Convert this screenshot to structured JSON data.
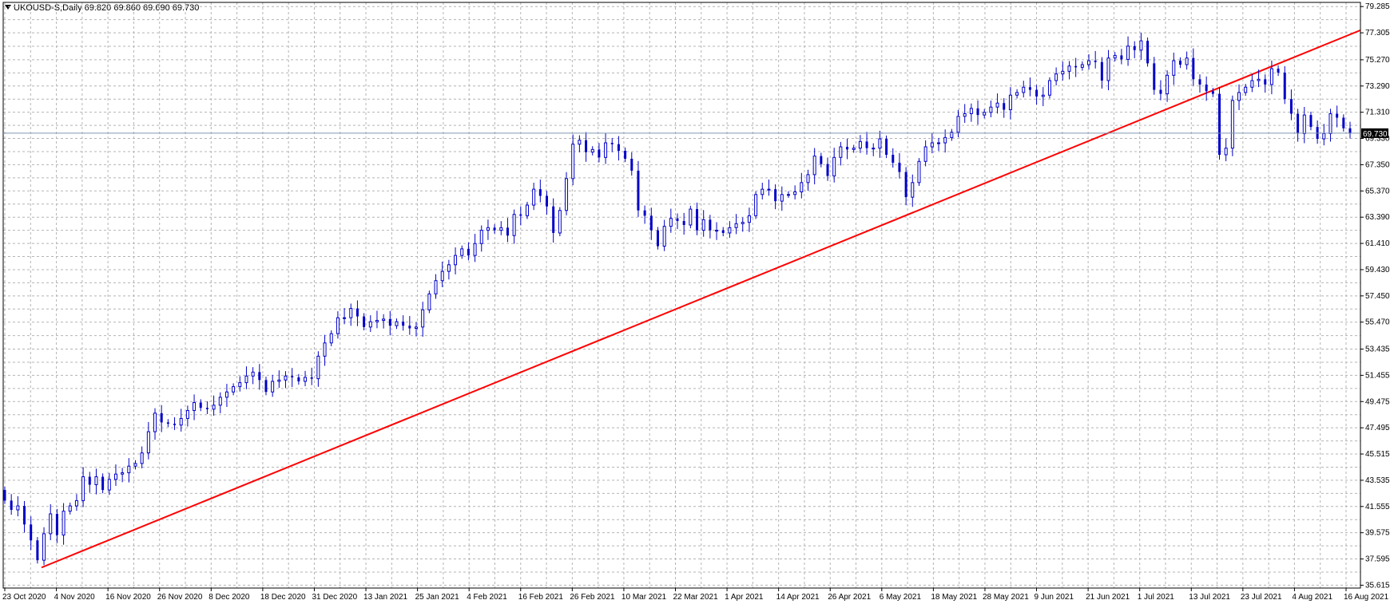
{
  "header": {
    "symbol": "UKOUSD-S,Daily",
    "ohlc": "69.820 69.860 69.690 69.730"
  },
  "colors": {
    "candle": "#0000c8",
    "trendline": "#ff0000",
    "grid": "#b4b4b4",
    "price_line": "#8096b4",
    "price_label_bg": "#000000",
    "price_label_text": "#ffffff"
  },
  "chart_data": {
    "type": "candlestick",
    "title": "UKOUSD-S,Daily",
    "xlabel": "",
    "ylabel": "",
    "ylim": [
      35.4,
      79.6
    ],
    "grid": true,
    "current_price": 69.73,
    "current_price_label": "69.730",
    "y_ticks": [
      "79.285",
      "77.305",
      "75.270",
      "73.290",
      "71.310",
      "69.330",
      "67.350",
      "65.370",
      "63.390",
      "61.410",
      "59.430",
      "57.450",
      "55.470",
      "53.435",
      "51.455",
      "49.475",
      "47.495",
      "45.515",
      "43.535",
      "41.555",
      "39.575",
      "37.595",
      "35.615"
    ],
    "x_ticks": [
      "23 Oct 2020",
      "4 Nov 2020",
      "16 Nov 2020",
      "26 Nov 2020",
      "8 Dec 2020",
      "18 Dec 2020",
      "31 Dec 2020",
      "13 Jan 2021",
      "25 Jan 2021",
      "4 Feb 2021",
      "16 Feb 2021",
      "26 Feb 2021",
      "10 Mar 2021",
      "22 Mar 2021",
      "1 Apr 2021",
      "14 Apr 2021",
      "26 Apr 2021",
      "6 May 2021",
      "18 May 2021",
      "28 May 2021",
      "9 Jun 2021",
      "21 Jun 2021",
      "1 Jul 2021",
      "13 Jul 2021",
      "23 Jul 2021",
      "4 Aug 2021",
      "16 Aug 2021"
    ],
    "candles_note": "Daily OHLC values estimated by eye from the candlesticks",
    "closes": [
      42.0,
      41.3,
      41.6,
      40.2,
      39.0,
      37.5,
      39.5,
      41.0,
      39.4,
      41.2,
      41.6,
      42.0,
      43.8,
      43.2,
      43.8,
      42.8,
      43.6,
      44.0,
      44.1,
      44.6,
      44.8,
      45.6,
      47.2,
      48.6,
      47.9,
      47.8,
      47.7,
      48.2,
      48.8,
      49.4,
      49.0,
      48.9,
      49.2,
      49.8,
      50.2,
      50.6,
      50.9,
      51.4,
      51.7,
      51.1,
      50.2,
      51.0,
      51.1,
      51.4,
      51.3,
      51.0,
      51.3,
      51.2,
      52.9,
      53.9,
      54.6,
      55.8,
      55.8,
      56.5,
      55.9,
      55.1,
      55.5,
      55.6,
      55.7,
      55.2,
      55.5,
      55.2,
      55.0,
      55.1,
      56.4,
      57.6,
      58.6,
      59.3,
      59.8,
      60.5,
      61.0,
      60.5,
      61.4,
      62.4,
      62.6,
      62.4,
      62.6,
      62.0,
      63.6,
      63.5,
      64.3,
      65.5,
      65.0,
      64.2,
      62.2,
      63.9,
      66.3,
      68.9,
      69.2,
      68.3,
      68.5,
      67.9,
      69.0,
      68.9,
      68.4,
      67.8,
      66.9,
      63.9,
      63.5,
      62.4,
      61.2,
      62.7,
      63.3,
      63.1,
      62.8,
      64.0,
      62.4,
      63.2,
      62.4,
      62.4,
      62.2,
      62.6,
      62.9,
      63.0,
      63.5,
      65.1,
      65.5,
      65.5,
      64.6,
      65.1,
      65.1,
      65.3,
      66.0,
      66.6,
      68.0,
      67.4,
      66.5,
      67.9,
      68.7,
      68.5,
      68.6,
      69.1,
      68.6,
      68.6,
      69.3,
      68.1,
      67.5,
      66.8,
      64.9,
      66.0,
      67.6,
      68.7,
      69.0,
      69.0,
      69.4,
      69.8,
      71.0,
      71.2,
      71.6,
      71.1,
      71.3,
      71.7,
      72.0,
      71.5,
      72.6,
      72.8,
      73.2,
      73.0,
      72.5,
      72.6,
      73.7,
      74.2,
      74.4,
      74.8,
      74.7,
      74.9,
      75.2,
      75.1,
      73.7,
      75.4,
      75.6,
      75.3,
      76.3,
      76.0,
      76.7,
      75.0,
      73.0,
      72.7,
      74.1,
      75.2,
      74.9,
      75.4,
      73.8,
      73.4,
      72.9,
      72.7,
      68.1,
      68.6,
      72.2,
      72.8,
      73.2,
      73.7,
      73.8,
      73.4,
      74.6,
      74.3,
      72.3,
      71.2,
      69.7,
      71.1,
      70.2,
      69.3,
      69.7,
      71.2,
      70.9,
      70.1,
      69.7
    ],
    "opens_note": "open = previous close for each candle",
    "trendline": {
      "from": {
        "x": "26 Oct 2020",
        "y": 36.95
      },
      "to": {
        "x": "right edge",
        "y": 77.5
      }
    }
  }
}
